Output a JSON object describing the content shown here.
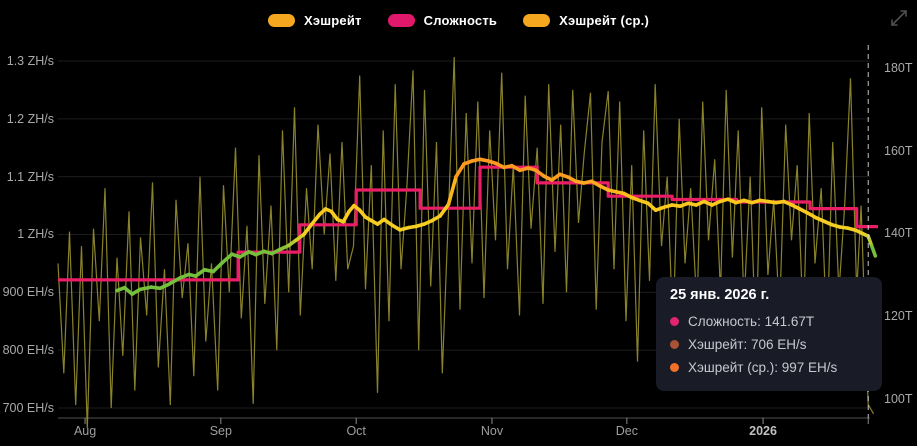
{
  "legend": {
    "items": [
      {
        "label": "Хэшрейт",
        "color": "#f5a81f"
      },
      {
        "label": "Сложность",
        "color": "#e2196a"
      },
      {
        "label": "Хэшрейт (ср.)",
        "color": "#f5a81f"
      }
    ]
  },
  "tooltip": {
    "title": "25 янв. 2026 г.",
    "rows": [
      {
        "label": "Сложность",
        "value": "141.67T",
        "text": "Сложность: 141.67T",
        "color": "#e0246e"
      },
      {
        "label": "Хэшрейт",
        "value": "706 EH/s",
        "text": "Хэшрейт: 706 EH/s",
        "color": "#a85335"
      },
      {
        "label": "Хэшрейт (ср.)",
        "value": "997 EH/s",
        "text": "Хэшрейт (ср.): 997 EH/s",
        "color": "#f2702a"
      }
    ]
  },
  "chart_data": {
    "type": "line",
    "background": "#000000",
    "grid": "horizontal",
    "legend_position": "top-center",
    "x_axis": {
      "unit": "days since chart start (late Jul 2025)",
      "t_max": 183,
      "month_ticks": [
        {
          "label": "Aug",
          "t": 6.1
        },
        {
          "label": "Sep",
          "t": 36.7
        },
        {
          "label": "Oct",
          "t": 67.2
        },
        {
          "label": "Nov",
          "t": 97.8
        },
        {
          "label": "Dec",
          "t": 128.2
        },
        {
          "label": "2026",
          "t": 158.9,
          "bold": true
        }
      ],
      "end_tick_t": 182.6
    },
    "left_axis": {
      "unit": "hashrate EH/s",
      "range": [
        700,
        1300
      ],
      "ticks": [
        {
          "v": 1300,
          "label": "1.3 ZH/s"
        },
        {
          "v": 1200,
          "label": "1.2 ZH/s"
        },
        {
          "v": 1100,
          "label": "1.1 ZH/s"
        },
        {
          "v": 1000,
          "label": "1 ZH/s"
        },
        {
          "v": 900,
          "label": "900 EH/s"
        },
        {
          "v": 800,
          "label": "800 EH/s"
        },
        {
          "v": 700,
          "label": "700 EH/s"
        }
      ]
    },
    "right_axis": {
      "unit": "difficulty T",
      "range": [
        100,
        180
      ],
      "ticks": [
        {
          "v": 180,
          "label": "180T"
        },
        {
          "v": 160,
          "label": "160T"
        },
        {
          "v": 140,
          "label": "140T"
        },
        {
          "v": 120,
          "label": "120T"
        },
        {
          "v": 100,
          "label": "100T"
        }
      ]
    },
    "crosshair": {
      "t": 182.6,
      "style": "dashed",
      "color": "#e6e6e6"
    },
    "series": [
      {
        "name": "Хэшрейт",
        "kind": "raw",
        "axis": "left",
        "color": "#9c9430",
        "width": 1.2,
        "points": [
          [
            0,
            950
          ],
          [
            1.3,
            760
          ],
          [
            2.6,
            1005
          ],
          [
            4,
            705
          ],
          [
            5.3,
            980
          ],
          [
            6.6,
            665
          ],
          [
            8,
            1010
          ],
          [
            9.3,
            850
          ],
          [
            10.6,
            1080
          ],
          [
            12,
            700
          ],
          [
            13.3,
            960
          ],
          [
            14.6,
            790
          ],
          [
            16,
            1040
          ],
          [
            17.3,
            730
          ],
          [
            18.6,
            995
          ],
          [
            20,
            860
          ],
          [
            21.3,
            1090
          ],
          [
            22.6,
            770
          ],
          [
            24,
            940
          ],
          [
            25.3,
            705
          ],
          [
            26.6,
            1060
          ],
          [
            28,
            890
          ],
          [
            29.3,
            985
          ],
          [
            30.6,
            755
          ],
          [
            32,
            1100
          ],
          [
            33.3,
            815
          ],
          [
            34.6,
            950
          ],
          [
            36,
            730
          ],
          [
            37.3,
            1085
          ],
          [
            38.6,
            900
          ],
          [
            40,
            1150
          ],
          [
            41.3,
            855
          ],
          [
            42.6,
            1015
          ],
          [
            44,
            707
          ],
          [
            45.3,
            1137
          ],
          [
            46.6,
            880
          ],
          [
            48,
            1050
          ],
          [
            49.3,
            800
          ],
          [
            50.6,
            1180
          ],
          [
            52,
            900
          ],
          [
            53.3,
            1220
          ],
          [
            54.6,
            860
          ],
          [
            56,
            1080
          ],
          [
            57.3,
            940
          ],
          [
            58.6,
            1190
          ],
          [
            60,
            1000
          ],
          [
            61.3,
            1140
          ],
          [
            62.6,
            920
          ],
          [
            64,
            1160
          ],
          [
            65.3,
            940
          ],
          [
            66.6,
            980
          ],
          [
            68,
            1275
          ],
          [
            69.3,
            905
          ],
          [
            70.6,
            1120
          ],
          [
            72,
            726
          ],
          [
            73.3,
            1180
          ],
          [
            74.6,
            850
          ],
          [
            76,
            1260
          ],
          [
            77.3,
            940
          ],
          [
            78.6,
            1080
          ],
          [
            80,
            1284
          ],
          [
            81.3,
            800
          ],
          [
            82.6,
            1250
          ],
          [
            84,
            910
          ],
          [
            85.3,
            1160
          ],
          [
            86.6,
            760
          ],
          [
            88,
            1040
          ],
          [
            89.3,
            1307
          ],
          [
            90.6,
            870
          ],
          [
            92,
            1210
          ],
          [
            93.3,
            950
          ],
          [
            94.6,
            1230
          ],
          [
            96,
            890
          ],
          [
            97.3,
            1180
          ],
          [
            98.6,
            990
          ],
          [
            100,
            1280
          ],
          [
            101.3,
            940
          ],
          [
            102.6,
            1120
          ],
          [
            104,
            860
          ],
          [
            105.3,
            1240
          ],
          [
            106.6,
            1010
          ],
          [
            108,
            1150
          ],
          [
            109.3,
            880
          ],
          [
            110.6,
            1260
          ],
          [
            112,
            970
          ],
          [
            113.3,
            1190
          ],
          [
            114.6,
            900
          ],
          [
            116,
            1250
          ],
          [
            117.3,
            1020
          ],
          [
            118.6,
            1140
          ],
          [
            120,
            1245
          ],
          [
            121.3,
            870
          ],
          [
            122.6,
            1160
          ],
          [
            124,
            1248
          ],
          [
            125.3,
            940
          ],
          [
            126.6,
            1230
          ],
          [
            128,
            850
          ],
          [
            129.3,
            1120
          ],
          [
            130.6,
            780
          ],
          [
            132,
            1180
          ],
          [
            133.3,
            920
          ],
          [
            134.6,
            1260
          ],
          [
            136,
            980
          ],
          [
            137.3,
            1100
          ],
          [
            138.6,
            830
          ],
          [
            140,
            1200
          ],
          [
            141.3,
            950
          ],
          [
            142.6,
            1080
          ],
          [
            144,
            870
          ],
          [
            145.3,
            1230
          ],
          [
            146.6,
            990
          ],
          [
            148,
            1130
          ],
          [
            149.3,
            900
          ],
          [
            150.6,
            1250
          ],
          [
            152,
            960
          ],
          [
            153.3,
            1180
          ],
          [
            154.6,
            880
          ],
          [
            156,
            1100
          ],
          [
            157.3,
            800
          ],
          [
            158.6,
            1220
          ],
          [
            160,
            930
          ],
          [
            161.3,
            1060
          ],
          [
            162.6,
            860
          ],
          [
            164,
            1190
          ],
          [
            165.3,
            990
          ],
          [
            166.6,
            1120
          ],
          [
            168,
            840
          ],
          [
            169.3,
            1210
          ],
          [
            170.6,
            950
          ],
          [
            172,
            1080
          ],
          [
            173.3,
            820
          ],
          [
            174.6,
            1160
          ],
          [
            176,
            900
          ],
          [
            177.3,
            1050
          ],
          [
            178.6,
            1270
          ],
          [
            180,
            900
          ],
          [
            181,
            1050
          ],
          [
            182,
            820
          ],
          [
            182.6,
            706
          ],
          [
            183.8,
            690
          ]
        ]
      },
      {
        "name": "Сложность",
        "kind": "step",
        "axis": "right",
        "color": "#ea1d67",
        "width": 3.2,
        "steps": [
          [
            0,
            128.8
          ],
          [
            40.6,
            135.5
          ],
          [
            54.5,
            142.1
          ],
          [
            67.2,
            150.5
          ],
          [
            81.6,
            146.1
          ],
          [
            95.1,
            156.0
          ],
          [
            108,
            152.2
          ],
          [
            124,
            149.0
          ],
          [
            138.4,
            148.2
          ],
          [
            153,
            147.6
          ],
          [
            169.5,
            146.0
          ],
          [
            180,
            141.67
          ]
        ],
        "end_t": 184.8
      },
      {
        "name": "Хэшрейт (ср.)",
        "kind": "ma",
        "axis": "left",
        "width": 3.6,
        "color_stops": [
          {
            "v": 972,
            "c": "#74c03c"
          },
          {
            "v": 1002,
            "c": "#f3d124"
          },
          {
            "v": 1058,
            "c": "#fac71d"
          },
          {
            "v": 1102,
            "c": "#fd9a22"
          }
        ],
        "points": [
          [
            13.3,
            903
          ],
          [
            15,
            908
          ],
          [
            16.7,
            897
          ],
          [
            18.5,
            905
          ],
          [
            21,
            909
          ],
          [
            23,
            907
          ],
          [
            25,
            914
          ],
          [
            27.5,
            925
          ],
          [
            29.5,
            931
          ],
          [
            31,
            928
          ],
          [
            33,
            939
          ],
          [
            35,
            936
          ],
          [
            37,
            951
          ],
          [
            39.2,
            966
          ],
          [
            41,
            961
          ],
          [
            43,
            970
          ],
          [
            44.6,
            965
          ],
          [
            46.4,
            971
          ],
          [
            48.2,
            967
          ],
          [
            50,
            974
          ],
          [
            52,
            981
          ],
          [
            53.6,
            990
          ],
          [
            55.4,
            1000
          ],
          [
            57.2,
            1018
          ],
          [
            59,
            1035
          ],
          [
            60.3,
            1044
          ],
          [
            61.6,
            1040
          ],
          [
            63,
            1026
          ],
          [
            64.3,
            1022
          ],
          [
            65.6,
            1040
          ],
          [
            66.7,
            1050
          ],
          [
            68,
            1042
          ],
          [
            69.3,
            1030
          ],
          [
            70.6,
            1024
          ],
          [
            72,
            1018
          ],
          [
            73.5,
            1026
          ],
          [
            75.3,
            1016
          ],
          [
            77.1,
            1008
          ],
          [
            79,
            1012
          ],
          [
            80.7,
            1014
          ],
          [
            82.5,
            1018
          ],
          [
            84.3,
            1024
          ],
          [
            86.1,
            1032
          ],
          [
            88,
            1052
          ],
          [
            89.7,
            1100
          ],
          [
            91.5,
            1122
          ],
          [
            93.3,
            1127
          ],
          [
            95.1,
            1130
          ],
          [
            97,
            1127
          ],
          [
            98.7,
            1123
          ],
          [
            100.5,
            1116
          ],
          [
            102.3,
            1119
          ],
          [
            104.1,
            1111
          ],
          [
            106,
            1115
          ],
          [
            107.7,
            1111
          ],
          [
            109.5,
            1101
          ],
          [
            111.3,
            1094
          ],
          [
            113.1,
            1104
          ],
          [
            115,
            1099
          ],
          [
            116.7,
            1092
          ],
          [
            118.5,
            1089
          ],
          [
            120.3,
            1092
          ],
          [
            122.1,
            1084
          ],
          [
            124,
            1077
          ],
          [
            125.7,
            1074
          ],
          [
            127.5,
            1071
          ],
          [
            129.3,
            1064
          ],
          [
            131.1,
            1059
          ],
          [
            133,
            1054
          ],
          [
            134.7,
            1042
          ],
          [
            136.5,
            1047
          ],
          [
            138.4,
            1051
          ],
          [
            140.2,
            1049
          ],
          [
            142,
            1054
          ],
          [
            143.8,
            1051
          ],
          [
            145.6,
            1057
          ],
          [
            147.4,
            1051
          ],
          [
            149.2,
            1057
          ],
          [
            151,
            1061
          ],
          [
            152.8,
            1055
          ],
          [
            154.6,
            1059
          ],
          [
            156.4,
            1055
          ],
          [
            158.2,
            1059
          ],
          [
            160,
            1057
          ],
          [
            161.8,
            1055
          ],
          [
            163.6,
            1057
          ],
          [
            165.4,
            1051
          ],
          [
            167.2,
            1044
          ],
          [
            169,
            1037
          ],
          [
            170.8,
            1029
          ],
          [
            172.6,
            1023
          ],
          [
            174.4,
            1017
          ],
          [
            176.2,
            1013
          ],
          [
            178,
            1011
          ],
          [
            179.9,
            1007
          ],
          [
            181.2,
            1002
          ],
          [
            182.6,
            997
          ],
          [
            183.4,
            980
          ],
          [
            184.2,
            963
          ]
        ]
      }
    ]
  }
}
